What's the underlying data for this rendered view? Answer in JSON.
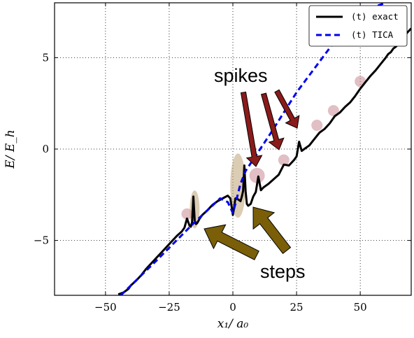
{
  "chart_data": {
    "type": "line",
    "xlabel": "x₁/ a₀",
    "ylabel": "E/ E_h",
    "xlim": [
      -70,
      70
    ],
    "ylim": [
      -8,
      8
    ],
    "xticks": [
      -50,
      -25,
      0,
      25,
      50
    ],
    "xtick_labels": [
      "−50",
      "−25",
      "0",
      "25",
      "50"
    ],
    "yticks": [
      -5,
      0,
      5
    ],
    "ytick_labels": [
      "−5",
      "0",
      "5"
    ],
    "grid": true,
    "legend": {
      "placement": "top-right",
      "entries": [
        {
          "label": "(t) exact",
          "color": "#000000",
          "style": "solid"
        },
        {
          "label": "(t) TICA",
          "color": "#0000ee",
          "style": "dashed"
        }
      ]
    },
    "series": [
      {
        "name": "(t) exact",
        "color": "#000000",
        "style": "solid",
        "x": [
          -45,
          -43,
          -41,
          -40,
          -38,
          -36,
          -34,
          -32,
          -30,
          -28,
          -26,
          -24,
          -22,
          -20,
          -19,
          -18,
          -17,
          -16.5,
          -16,
          -15.5,
          -15,
          -14.5,
          -14,
          -13,
          -12,
          -10,
          -8,
          -6,
          -4,
          -2,
          -1,
          0,
          0.5,
          1,
          1.5,
          2,
          2.5,
          3,
          3.5,
          4,
          4.5,
          5,
          5.5,
          6,
          7,
          8,
          9,
          10,
          11,
          12,
          14,
          16,
          18,
          20,
          22,
          24,
          25,
          26,
          27,
          28,
          30,
          32,
          34,
          36,
          38,
          40,
          42,
          44,
          46,
          48,
          50,
          52,
          54,
          56,
          58,
          60,
          61,
          62,
          63,
          64,
          66,
          68,
          70
        ],
        "y": [
          -7.95,
          -7.85,
          -7.65,
          -7.45,
          -7.2,
          -6.9,
          -6.55,
          -6.25,
          -5.95,
          -5.65,
          -5.35,
          -5.05,
          -4.75,
          -4.5,
          -4.3,
          -3.8,
          -4.2,
          -4.25,
          -4.0,
          -2.6,
          -3.9,
          -4.1,
          -4.05,
          -3.8,
          -3.6,
          -3.35,
          -3.05,
          -2.85,
          -2.7,
          -2.55,
          -2.7,
          -3.6,
          -3.2,
          -2.7,
          -2.7,
          -2.75,
          -2.8,
          -2.85,
          -2.6,
          -2.3,
          -0.9,
          -2.3,
          -3.0,
          -3.1,
          -3.0,
          -2.6,
          -2.35,
          -1.5,
          -2.25,
          -2.1,
          -1.9,
          -1.65,
          -1.4,
          -0.85,
          -0.9,
          -0.6,
          -0.4,
          0.4,
          -0.1,
          0.0,
          0.2,
          0.55,
          0.9,
          1.1,
          1.4,
          1.8,
          2.0,
          2.3,
          2.55,
          2.9,
          3.3,
          3.65,
          4.0,
          4.3,
          4.65,
          5.0,
          5.2,
          5.3,
          5.5,
          5.6,
          5.9,
          6.3,
          6.6
        ]
      },
      {
        "name": "(t) TICA",
        "color": "#0000ee",
        "style": "dashed",
        "x": [
          -44,
          -30,
          -15,
          -5,
          -2,
          0,
          1,
          3,
          5,
          15,
          25,
          40,
          50,
          60
        ],
        "y": [
          -8,
          -6.1,
          -4.0,
          -2.7,
          -2.9,
          -3.5,
          -3.0,
          -1.9,
          -1.2,
          0.9,
          3.1,
          5.9,
          7.5,
          8
        ]
      }
    ],
    "annotations": [
      {
        "text": "spikes",
        "color": "#8b1a1a",
        "arrow_count": 3
      },
      {
        "text": "steps",
        "color": "#7a5e08",
        "arrow_count": 2
      }
    ],
    "highlights": [
      {
        "kind": "spike",
        "x": -18,
        "y": -3.55
      },
      {
        "kind": "spike",
        "x": 9.5,
        "y": -1.45
      },
      {
        "kind": "spike",
        "x": 20,
        "y": -0.6
      },
      {
        "kind": "spike",
        "x": 33,
        "y": 1.3
      },
      {
        "kind": "spike",
        "x": 39.5,
        "y": 2.1
      },
      {
        "kind": "spike",
        "x": 50,
        "y": 3.7
      },
      {
        "kind": "step",
        "x": -15,
        "y": -3.3
      },
      {
        "kind": "step",
        "x": 2,
        "y": -2.0
      }
    ]
  }
}
